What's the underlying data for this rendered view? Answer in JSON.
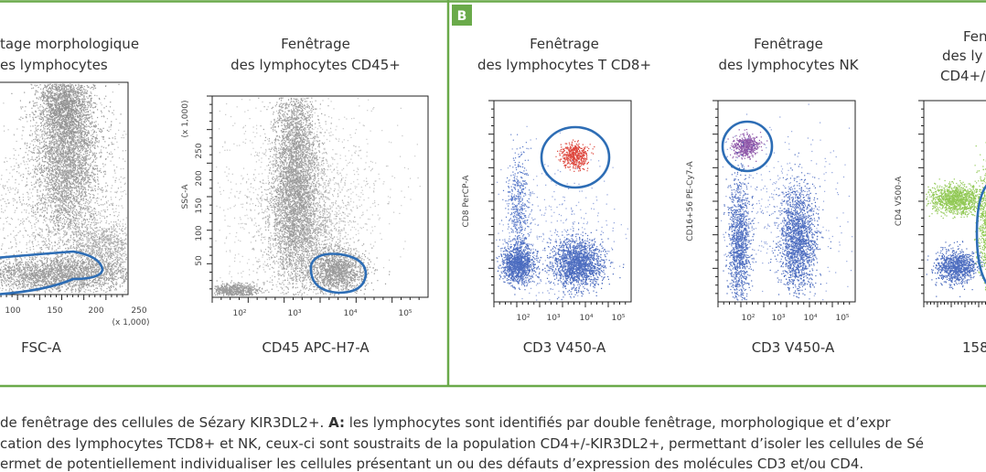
{
  "panel_b_label": "B",
  "plots": [
    {
      "title": [
        "tage morphologique",
        "es lymphocytes"
      ],
      "x_label": "FSC-A",
      "x_ticks": [
        "100",
        "150",
        "200",
        "250"
      ],
      "x_unit": "(x 1,000)"
    },
    {
      "title": [
        "Fenêtrage",
        "des lymphocytes CD45+"
      ],
      "x_label": "CD45 APC-H7-A",
      "y_label": "SSC-A",
      "x_ticks": [
        "10²",
        "10³",
        "10⁴",
        "10⁵"
      ],
      "y_ticks": [
        "50",
        "100",
        "150",
        "200",
        "250"
      ],
      "y_unit": "(x 1,000)"
    },
    {
      "title": [
        "Fenêtrage",
        "des lymphocytes T CD8+"
      ],
      "x_label": "CD3 V450-A",
      "y_label": "CD8 PerCP-A",
      "x_ticks": [
        "10²",
        "10³",
        "10⁴",
        "10⁵"
      ]
    },
    {
      "title": [
        "Fenêtrage",
        "des lymphocytes NK"
      ],
      "x_label": "CD3 V450-A",
      "y_label": "CD16+56 PE-Cy7-A",
      "x_ticks": [
        "10²",
        "10³",
        "10⁴",
        "10⁵"
      ]
    },
    {
      "title": [
        "Fen",
        "des ly",
        "CD4+/"
      ],
      "x_label": "158",
      "y_label": "CD4 V500-A"
    }
  ],
  "caption": [
    {
      "before": "de fenêtrage des cellules de Sézary KIR3DL2+. ",
      "bold": "A:",
      "after": " les lymphocytes sont identifiés par double fenêtrage, morphologique et d’expr"
    },
    {
      "text": "cation des lymphocytes TCD8+ et NK, ceux-ci sont soustraits de la population CD4+/-KIR3DL2+, permettant d’isoler les cellules de Sé"
    },
    {
      "text": "ermet de potentiellement individualiser les cellules présentant un ou des défauts d’expression des molécules CD3 et/ou CD4."
    }
  ]
}
